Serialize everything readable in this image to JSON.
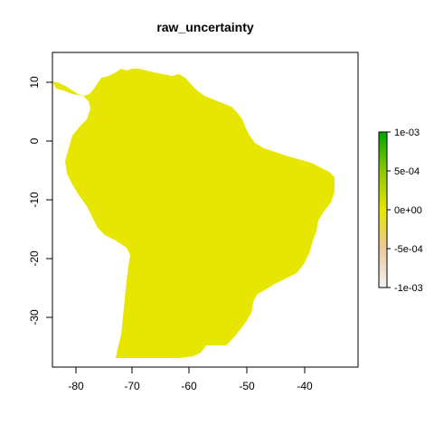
{
  "title": "raw_uncertainty",
  "x_ticks": [
    "-80",
    "-70",
    "-60",
    "-50",
    "-40"
  ],
  "y_ticks": [
    "10",
    "0",
    "-10",
    "-20",
    "-30"
  ],
  "legend": {
    "labels": [
      "1e-03",
      "5e-04",
      "0e+00",
      "-5e-04",
      "-1e-03"
    ],
    "colors": [
      "#00A600",
      "#E6E600",
      "#F2F2F2"
    ]
  },
  "fill_color": "#E6E600",
  "chart_data": {
    "type": "heatmap",
    "title": "raw_uncertainty",
    "xlabel": "",
    "ylabel": "",
    "x_ticks": [
      -80,
      -70,
      -60,
      -50,
      -40
    ],
    "y_ticks": [
      10,
      0,
      -10,
      -20,
      -30
    ],
    "xlim": [
      -84,
      -32
    ],
    "ylim": [
      -38,
      15
    ],
    "value_range": [
      -0.001,
      0.001
    ],
    "displayed_value": 0,
    "legend_placement": "right"
  }
}
